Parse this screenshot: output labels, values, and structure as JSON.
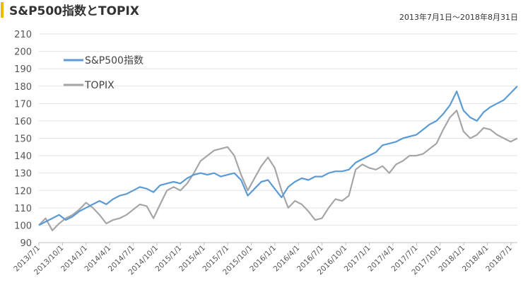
{
  "chart_data": {
    "type": "line",
    "title": "S&P500指数とTOPIX",
    "subtitle": "2013年7月1日～2018年8月31日",
    "xlabel": "",
    "ylabel": "",
    "ylim": [
      90,
      210
    ],
    "yticks": [
      90,
      100,
      110,
      120,
      130,
      140,
      150,
      160,
      170,
      180,
      190,
      200,
      210
    ],
    "xticks": [
      "2013/7/1",
      "2013/10/1",
      "2014/1/1",
      "2014/4/1",
      "2014/7/1",
      "2014/10/1",
      "2015/1/1",
      "2015/4/1",
      "2015/7/1",
      "2015/10/1",
      "2016/1/1",
      "2016/4/1",
      "2016/7/1",
      "2016/10/1",
      "2017/1/1",
      "2017/4/1",
      "2017/7/1",
      "2017/10/1",
      "2018/1/1",
      "2018/4/1",
      "2018/7/1"
    ],
    "grid": true,
    "legend_position": "top-left",
    "accent_color": "#f2b700",
    "series": [
      {
        "name": "S&P500指数",
        "color": "#5b9bd5",
        "values": [
          100,
          102,
          104,
          106,
          103,
          105,
          108,
          110,
          112,
          114,
          112,
          115,
          117,
          118,
          120,
          122,
          121,
          119,
          123,
          124,
          125,
          124,
          127,
          129,
          130,
          129,
          130,
          128,
          129,
          130,
          126,
          117,
          121,
          125,
          126,
          121,
          116,
          122,
          125,
          127,
          126,
          128,
          128,
          130,
          131,
          131,
          132,
          136,
          138,
          140,
          142,
          146,
          147,
          148,
          150,
          151,
          152,
          155,
          158,
          160,
          164,
          169,
          177,
          166,
          162,
          160,
          165,
          168,
          170,
          172,
          176,
          180
        ]
      },
      {
        "name": "TOPIX",
        "color": "#a6a6a6",
        "values": [
          100,
          104,
          97,
          101,
          104,
          106,
          109,
          113,
          110,
          106,
          101,
          103,
          104,
          106,
          109,
          112,
          111,
          104,
          112,
          120,
          122,
          120,
          124,
          130,
          137,
          140,
          143,
          144,
          145,
          140,
          129,
          120,
          127,
          134,
          139,
          133,
          120,
          110,
          114,
          112,
          108,
          103,
          104,
          110,
          115,
          114,
          117,
          132,
          135,
          133,
          132,
          134,
          130,
          135,
          137,
          140,
          140,
          141,
          144,
          147,
          155,
          162,
          166,
          154,
          150,
          152,
          156,
          155,
          152,
          150,
          148,
          150
        ]
      }
    ]
  }
}
